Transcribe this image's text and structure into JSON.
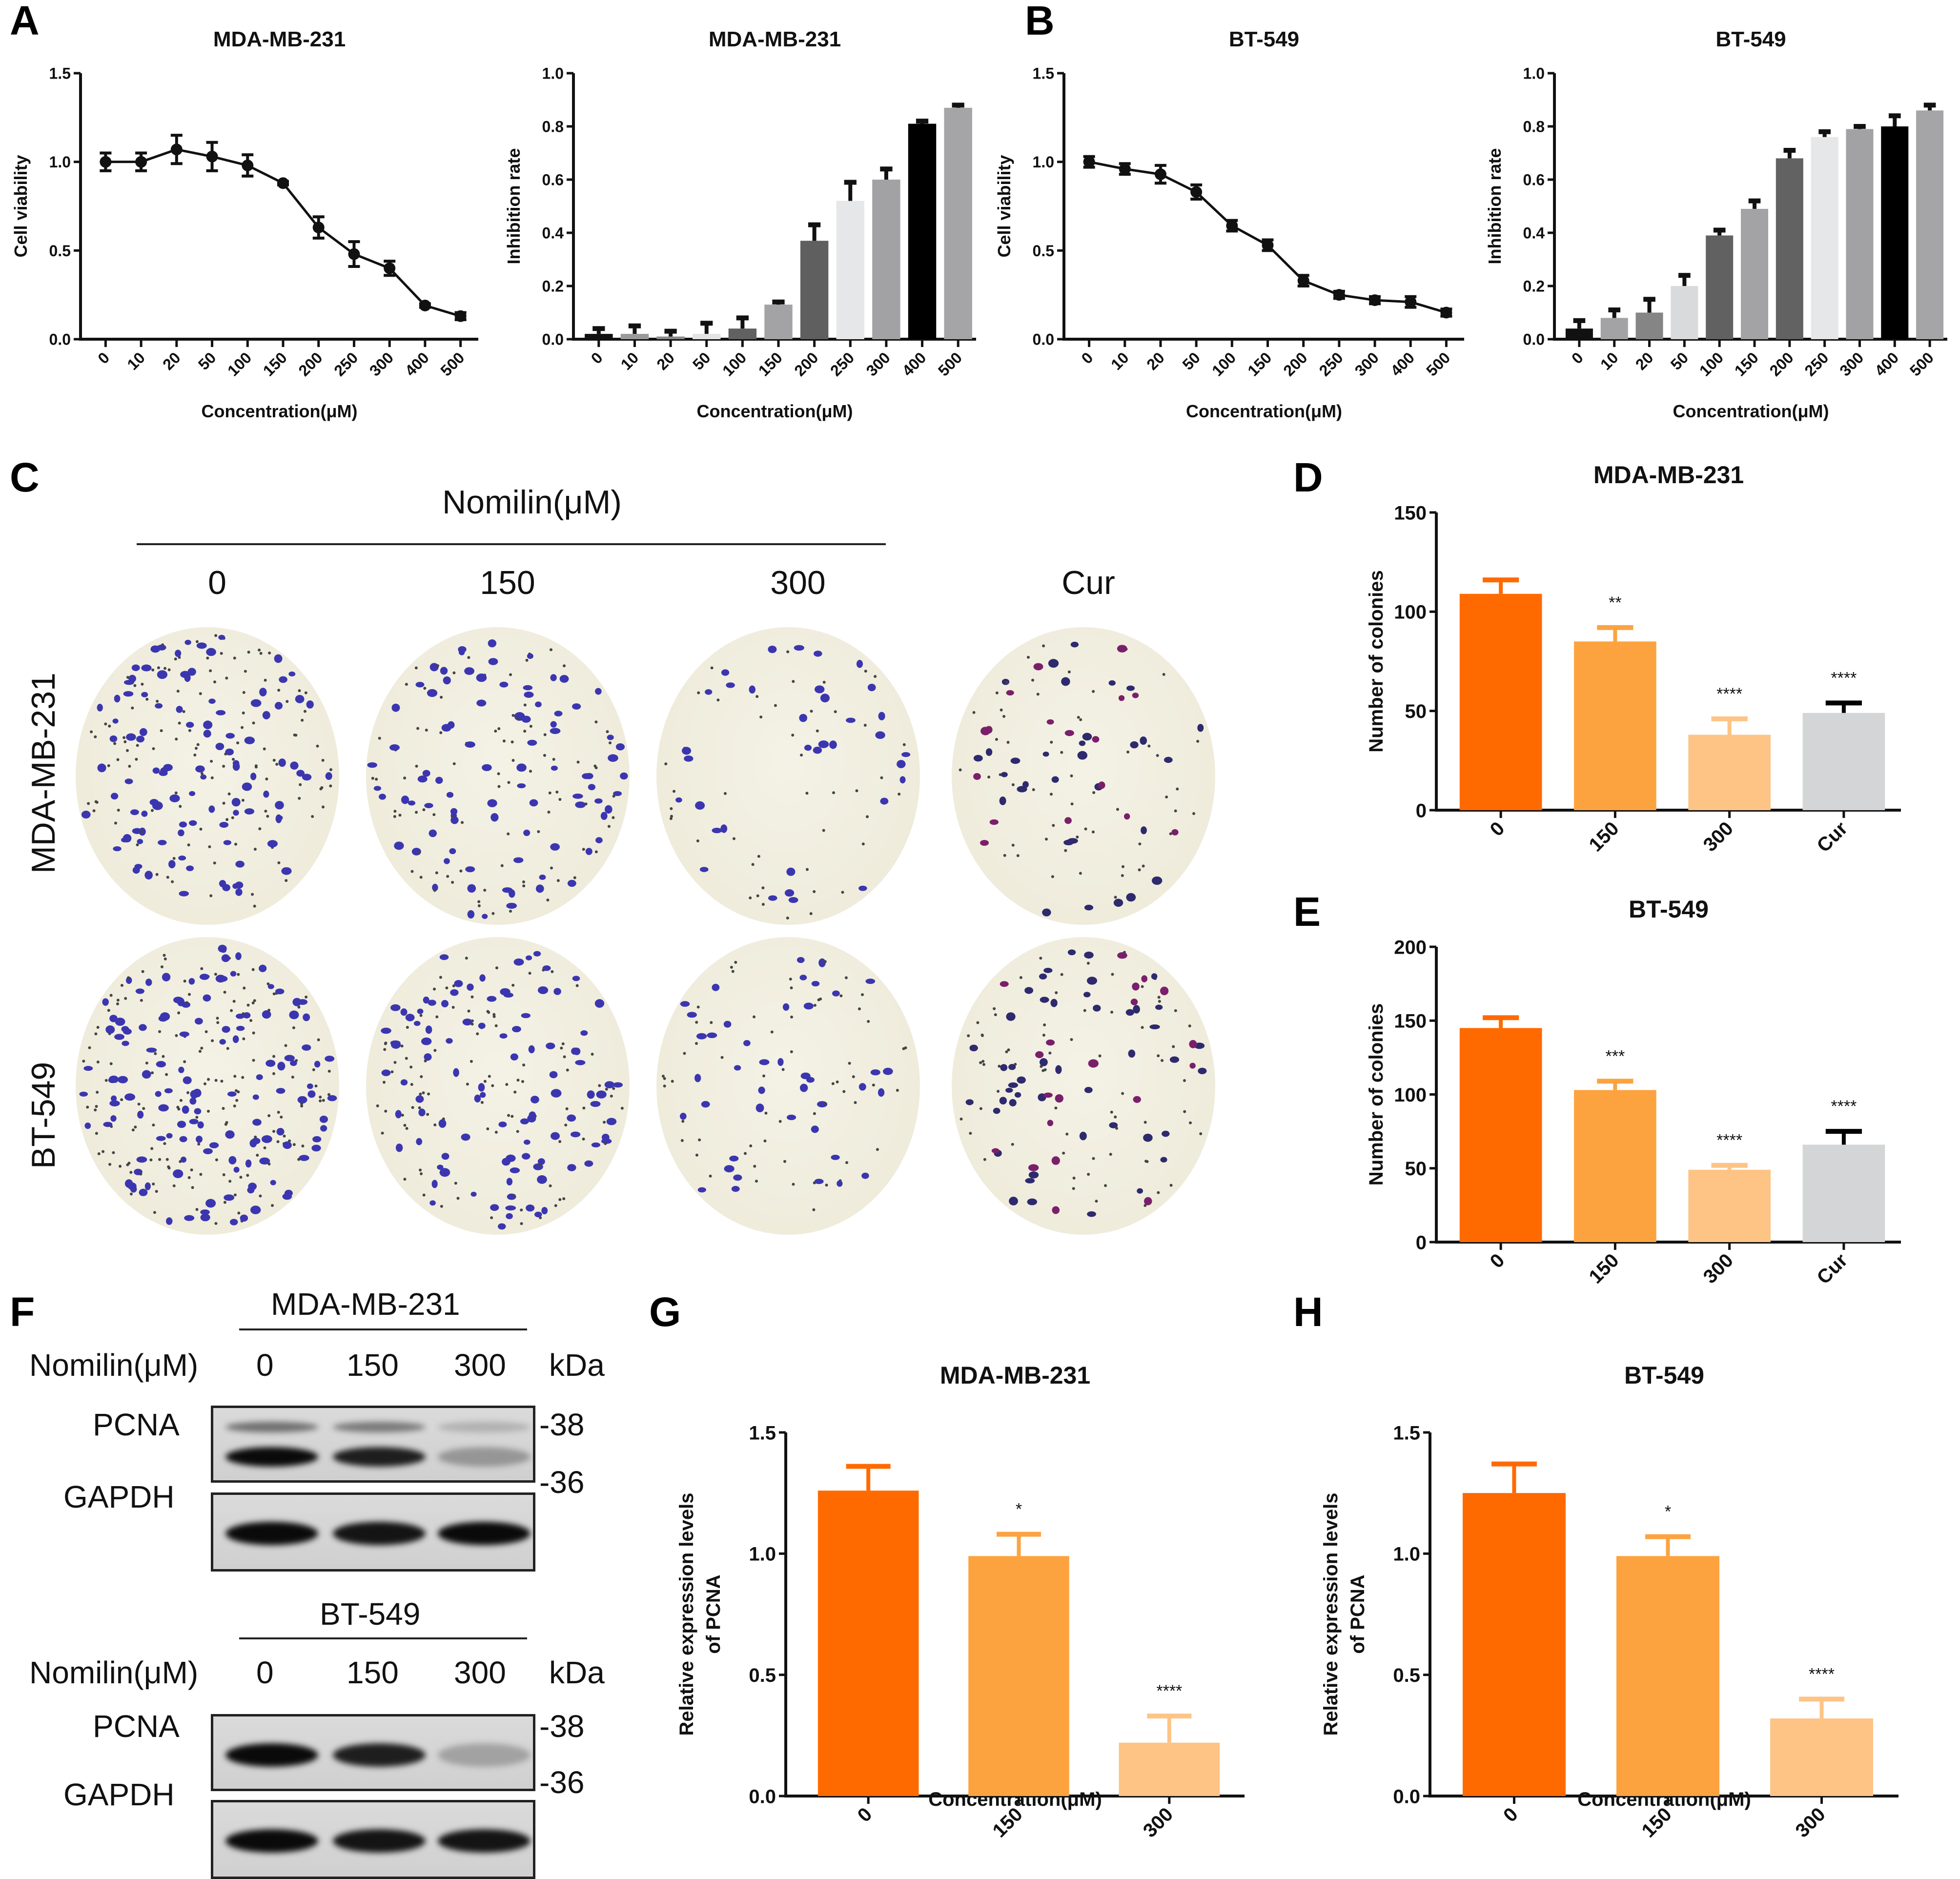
{
  "panel_letters": [
    "A",
    "B",
    "C",
    "D",
    "E",
    "F",
    "G",
    "H"
  ],
  "colors": {
    "orange_dark": "#FF6A00",
    "orange_mid": "#FCA340",
    "orange_light": "#FDC486",
    "gray_light": "#D4D5D7",
    "axis": "#111111"
  },
  "chart_data": [
    {
      "id": "A1",
      "panel": "A",
      "type": "line",
      "title": "MDA-MB-231",
      "xlabel": "Concentration(μM)",
      "ylabel": "Cell viability",
      "categories": [
        "0",
        "10",
        "20",
        "50",
        "100",
        "150",
        "200",
        "250",
        "300",
        "400",
        "500"
      ],
      "values": [
        1.0,
        1.0,
        1.07,
        1.03,
        0.98,
        0.88,
        0.63,
        0.48,
        0.4,
        0.19,
        0.13
      ],
      "errors": [
        0.05,
        0.05,
        0.08,
        0.08,
        0.06,
        0.01,
        0.06,
        0.07,
        0.04,
        0.01,
        0.02
      ],
      "ylim": [
        0,
        1.5
      ],
      "yticks": [
        "0.0",
        "0.5",
        "1.0",
        "1.5"
      ],
      "ytick_values": [
        0,
        0.5,
        1.0,
        1.5
      ],
      "grid": false
    },
    {
      "id": "A2",
      "panel": "A",
      "type": "bar",
      "title": "MDA-MB-231",
      "xlabel": "Concentration(μM)",
      "ylabel": "Inhibition rate",
      "categories": [
        "0",
        "10",
        "20",
        "50",
        "100",
        "150",
        "200",
        "250",
        "300",
        "400",
        "500"
      ],
      "values": [
        0.02,
        0.02,
        0.01,
        0.02,
        0.04,
        0.13,
        0.37,
        0.52,
        0.6,
        0.81,
        0.87
      ],
      "errors": [
        0.02,
        0.03,
        0.02,
        0.04,
        0.04,
        0.01,
        0.06,
        0.07,
        0.04,
        0.01,
        0.01
      ],
      "bar_colors": [
        "#111111",
        "#9a9a9c",
        "#8a8a8a",
        "#e2e3e4",
        "#616161",
        "#a3a3a6",
        "#5f5f5f",
        "#e6e7e8",
        "#a2a2a5",
        "#000000",
        "#a5a5a8"
      ],
      "ylim": [
        0,
        1.0
      ],
      "yticks": [
        "0.0",
        "0.2",
        "0.4",
        "0.6",
        "0.8",
        "1.0"
      ],
      "ytick_values": [
        0,
        0.2,
        0.4,
        0.6,
        0.8,
        1.0
      ],
      "grid": false
    },
    {
      "id": "B1",
      "panel": "B",
      "type": "line",
      "title": "BT-549",
      "xlabel": "Concentration(μM)",
      "ylabel": "Cell viability",
      "categories": [
        "0",
        "10",
        "20",
        "50",
        "100",
        "150",
        "200",
        "250",
        "300",
        "400",
        "500"
      ],
      "values": [
        1.0,
        0.96,
        0.93,
        0.83,
        0.64,
        0.53,
        0.33,
        0.25,
        0.22,
        0.21,
        0.15
      ],
      "errors": [
        0.03,
        0.03,
        0.05,
        0.04,
        0.03,
        0.03,
        0.03,
        0.02,
        0.02,
        0.03,
        0.02
      ],
      "ylim": [
        0,
        1.5
      ],
      "yticks": [
        "0.0",
        "0.5",
        "1.0",
        "1.5"
      ],
      "ytick_values": [
        0,
        0.5,
        1.0,
        1.5
      ],
      "grid": false
    },
    {
      "id": "B2",
      "panel": "B",
      "type": "bar",
      "title": "BT-549",
      "xlabel": "Concentration(μM)",
      "ylabel": "Inhibition rate",
      "categories": [
        "0",
        "10",
        "20",
        "50",
        "100",
        "150",
        "200",
        "250",
        "300",
        "400",
        "500"
      ],
      "values": [
        0.04,
        0.08,
        0.1,
        0.2,
        0.39,
        0.49,
        0.68,
        0.76,
        0.79,
        0.8,
        0.86
      ],
      "errors": [
        0.03,
        0.03,
        0.05,
        0.04,
        0.02,
        0.03,
        0.03,
        0.02,
        0.01,
        0.04,
        0.02
      ],
      "bar_colors": [
        "#111111",
        "#a3a3a6",
        "#858585",
        "#d9dadb",
        "#616161",
        "#a3a3a6",
        "#626262",
        "#e6e7e8",
        "#a2a2a5",
        "#000000",
        "#a5a5a8"
      ],
      "ylim": [
        0,
        1.0
      ],
      "yticks": [
        "0.0",
        "0.2",
        "0.4",
        "0.6",
        "0.8",
        "1.0"
      ],
      "ytick_values": [
        0,
        0.2,
        0.4,
        0.6,
        0.8,
        1.0
      ],
      "grid": false
    },
    {
      "id": "D",
      "panel": "D",
      "type": "bar",
      "title": "MDA-MB-231",
      "xlabel": "",
      "ylabel": "Number of colonies",
      "categories": [
        "0",
        "150",
        "300",
        "Cur"
      ],
      "values": [
        109,
        85,
        38,
        49
      ],
      "errors": [
        7,
        7,
        8,
        5
      ],
      "significance": [
        "",
        "**",
        "****",
        "****"
      ],
      "bar_colors": [
        "#FF6A00",
        "#FCA340",
        "#FDC486",
        "#D4D5D7"
      ],
      "error_colors": [
        "#FF6A00",
        "#FCA340",
        "#FDC486",
        "#000000"
      ],
      "ylim": [
        0,
        150
      ],
      "yticks": [
        "0",
        "50",
        "100",
        "150"
      ],
      "ytick_values": [
        0,
        50,
        100,
        150
      ],
      "grid": false
    },
    {
      "id": "E",
      "panel": "E",
      "type": "bar",
      "title": "BT-549",
      "xlabel": "",
      "ylabel": "Number of colonies",
      "categories": [
        "0",
        "150",
        "300",
        "Cur"
      ],
      "values": [
        145,
        103,
        49,
        66
      ],
      "errors": [
        7,
        6,
        3,
        9
      ],
      "significance": [
        "",
        "***",
        "****",
        "****"
      ],
      "bar_colors": [
        "#FF6A00",
        "#FCA340",
        "#FDC486",
        "#D4D5D7"
      ],
      "error_colors": [
        "#FF6A00",
        "#FCA340",
        "#FDC486",
        "#000000"
      ],
      "ylim": [
        0,
        200
      ],
      "yticks": [
        "0",
        "50",
        "100",
        "150",
        "200"
      ],
      "ytick_values": [
        0,
        50,
        100,
        150,
        200
      ],
      "grid": false
    },
    {
      "id": "G",
      "panel": "G",
      "type": "bar",
      "title": "MDA-MB-231",
      "xlabel": "Concentration(μM)",
      "ylabel": "Relative expression levels of PCNA",
      "ylabel_lines": [
        "Relative expression levels",
        "of PCNA"
      ],
      "categories": [
        "0",
        "150",
        "300"
      ],
      "values": [
        1.26,
        0.99,
        0.22
      ],
      "errors": [
        0.1,
        0.09,
        0.11
      ],
      "significance": [
        "",
        "*",
        "****"
      ],
      "bar_colors": [
        "#FF6A00",
        "#FCA340",
        "#FDC486"
      ],
      "error_colors": [
        "#FF6A00",
        "#FCA340",
        "#FDC486"
      ],
      "ylim": [
        0,
        1.5
      ],
      "yticks": [
        "0.0",
        "0.5",
        "1.0",
        "1.5"
      ],
      "ytick_values": [
        0,
        0.5,
        1.0,
        1.5
      ],
      "grid": false
    },
    {
      "id": "H",
      "panel": "H",
      "type": "bar",
      "title": "BT-549",
      "xlabel": "Concentration(μM)",
      "ylabel": "Relative expression levels of PCNA",
      "ylabel_lines": [
        "Relative expression levels",
        "of PCNA"
      ],
      "categories": [
        "0",
        "150",
        "300"
      ],
      "values": [
        1.25,
        0.99,
        0.32
      ],
      "errors": [
        0.12,
        0.08,
        0.08
      ],
      "significance": [
        "",
        "*",
        "****"
      ],
      "bar_colors": [
        "#FF6A00",
        "#FCA340",
        "#FDC486"
      ],
      "error_colors": [
        "#FF6A00",
        "#FCA340",
        "#FDC486"
      ],
      "ylim": [
        0,
        1.5
      ],
      "yticks": [
        "0.0",
        "0.5",
        "1.0",
        "1.5"
      ],
      "ytick_values": [
        0,
        0.5,
        1.0,
        1.5
      ],
      "grid": false
    }
  ],
  "colony_panel": {
    "treatment_label": "Nomilin(μM)",
    "column_labels": [
      "0",
      "150",
      "300",
      "Cur"
    ],
    "row_labels": [
      "MDA-MB-231",
      "BT-549"
    ],
    "colony_density": [
      [
        1.0,
        0.75,
        0.35,
        0.45
      ],
      [
        1.3,
        0.9,
        0.45,
        0.6
      ]
    ]
  },
  "western_blot": {
    "blocks": [
      {
        "cell_line": "MDA-MB-231",
        "treatment_label": "Nomilin(μM)",
        "lanes": [
          "0",
          "150",
          "300"
        ],
        "unit": "kDa",
        "rows": [
          {
            "protein": "PCNA",
            "marker": "-38",
            "intensity": [
              1.0,
              0.9,
              0.3
            ],
            "double_band": true
          },
          {
            "protein": "GAPDH",
            "marker": "-36",
            "intensity": [
              1.0,
              0.95,
              1.0
            ],
            "double_band": false
          }
        ]
      },
      {
        "cell_line": "BT-549",
        "treatment_label": "Nomilin(μM)",
        "lanes": [
          "0",
          "150",
          "300"
        ],
        "unit": "kDa",
        "rows": [
          {
            "protein": "PCNA",
            "marker": "-38",
            "intensity": [
              1.0,
              0.9,
              0.25
            ],
            "double_band": false
          },
          {
            "protein": "GAPDH",
            "marker": "-36",
            "intensity": [
              1.0,
              0.95,
              0.95
            ],
            "double_band": false
          }
        ]
      }
    ]
  }
}
